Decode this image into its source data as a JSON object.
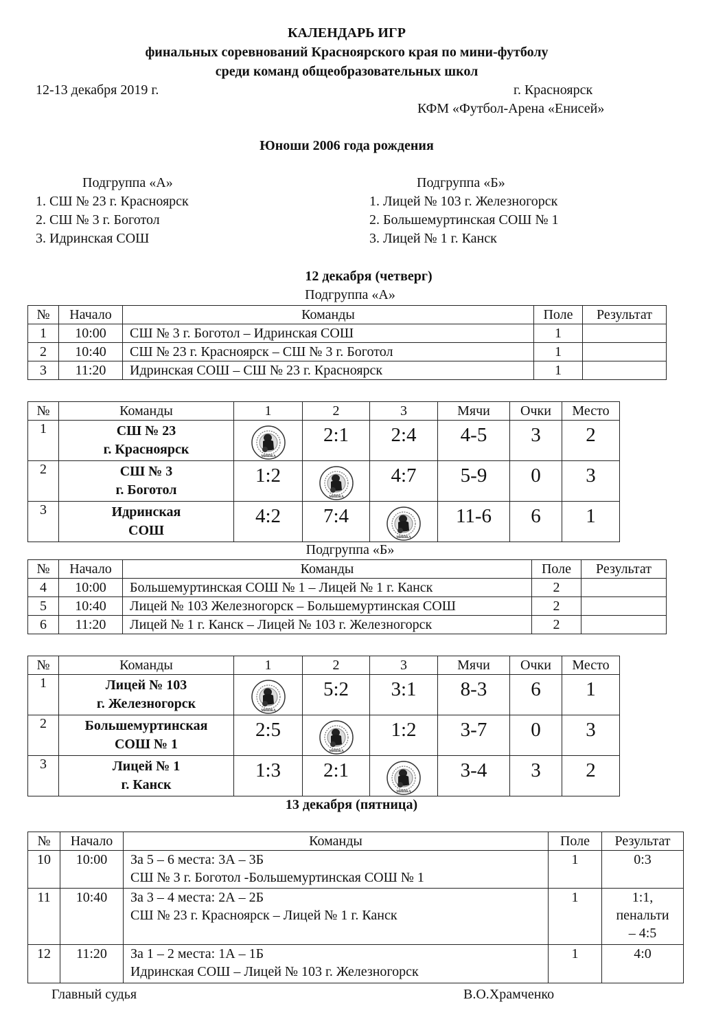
{
  "header": {
    "title": "КАЛЕНДАРЬ ИГР",
    "subtitle1": "финальных соревнований Красноярского края по мини-футболу",
    "subtitle2": "среди команд общеобразовательных школ",
    "dates": "12-13 декабря 2019 г.",
    "city": "г. Красноярск",
    "venue": "КФМ «Футбол-Арена «Енисей»",
    "category": "Юноши 2006 года рождения"
  },
  "groups": {
    "a": {
      "title": "Подгруппа «А»",
      "teams": [
        "1. СШ № 23 г. Красноярск",
        "2. СШ № 3 г. Боготол",
        "3. Идринская СОШ"
      ]
    },
    "b": {
      "title": "Подгруппа «Б»",
      "teams": [
        "1. Лицей № 103 г. Железногорск",
        "2. Большемуртинская СОШ № 1",
        "3. Лицей № 1 г. Канск"
      ]
    }
  },
  "day1": {
    "title": "12 декабря (четверг)",
    "group_a_label": "Подгруппа «А»",
    "group_b_label": "Подгруппа «Б»"
  },
  "day2": {
    "title": "13 декабря (пятница)"
  },
  "schedule_headers": [
    "№",
    "Начало",
    "Команды",
    "Поле",
    "Результат"
  ],
  "standings_headers": [
    "№",
    "Команды",
    "1",
    "2",
    "3",
    "Мячи",
    "Очки",
    "Место"
  ],
  "schedule_a": [
    [
      "1",
      "10:00",
      "СШ № 3 г. Боготол – Идринская СОШ",
      "1",
      ""
    ],
    [
      "2",
      "10:40",
      "СШ № 23 г. Красноярск – СШ № 3 г. Боготол",
      "1",
      ""
    ],
    [
      "3",
      "11:20",
      "Идринская СОШ – СШ № 23 г. Красноярск",
      "1",
      ""
    ]
  ],
  "standings_a": [
    {
      "n": "1",
      "team": [
        "СШ № 23",
        "г. Красноярск"
      ],
      "scores": [
        "",
        "2:1",
        "2:4"
      ],
      "goals": "4-5",
      "points": "3",
      "place": "2"
    },
    {
      "n": "2",
      "team": [
        "СШ № 3",
        "г. Боготол"
      ],
      "scores": [
        "1:2",
        "",
        "4:7"
      ],
      "goals": "5-9",
      "points": "0",
      "place": "3"
    },
    {
      "n": "3",
      "team": [
        "Идринская",
        "СОШ"
      ],
      "scores": [
        "4:2",
        "7:4",
        ""
      ],
      "goals": "11-6",
      "points": "6",
      "place": "1"
    }
  ],
  "schedule_b": [
    [
      "4",
      "10:00",
      "Большемуртинская СОШ № 1 – Лицей № 1 г. Канск",
      "2",
      ""
    ],
    [
      "5",
      "10:40",
      "Лицей № 103 Железногорск – Большемуртинская СОШ",
      "2",
      ""
    ],
    [
      "6",
      "11:20",
      "Лицей № 1 г. Канск – Лицей № 103 г. Железногорск",
      "2",
      ""
    ]
  ],
  "standings_b": [
    {
      "n": "1",
      "team": [
        "Лицей № 103",
        "г. Железногорск"
      ],
      "scores": [
        "",
        "5:2",
        "3:1"
      ],
      "goals": "8-3",
      "points": "6",
      "place": "1"
    },
    {
      "n": "2",
      "team": [
        "Большемуртинская",
        "СОШ № 1"
      ],
      "scores": [
        "2:5",
        "",
        "1:2"
      ],
      "goals": "3-7",
      "points": "0",
      "place": "3"
    },
    {
      "n": "3",
      "team": [
        "Лицей № 1",
        "г. Канск"
      ],
      "scores": [
        "1:3",
        "2:1",
        ""
      ],
      "goals": "3-4",
      "points": "3",
      "place": "2"
    }
  ],
  "finals": [
    {
      "n": "10",
      "time": "10:00",
      "lines": [
        "За 5 – 6 места: 3А – 3Б",
        "СШ № 3 г. Боготол -Большемуртинская СОШ № 1"
      ],
      "field": "1",
      "result": [
        "0:3"
      ]
    },
    {
      "n": "11",
      "time": "10:40",
      "lines": [
        "За 3 – 4 места: 2А – 2Б",
        "СШ № 23 г. Красноярск – Лицей № 1 г. Канск"
      ],
      "field": "1",
      "result": [
        "1:1,",
        "пенальти",
        "– 4:5"
      ]
    },
    {
      "n": "12",
      "time": "11:20",
      "lines": [
        "За 1 – 2 места: 1А – 1Б",
        "Идринская СОШ – Лицей № 103 г. Железногорск"
      ],
      "field": "1",
      "result": [
        "4:0"
      ]
    }
  ],
  "footer": {
    "role": "Главный судья",
    "name": "В.О.Храмченко"
  },
  "logo": {
    "icon": "mishka-stamp-icon",
    "text": "МИШКА"
  }
}
